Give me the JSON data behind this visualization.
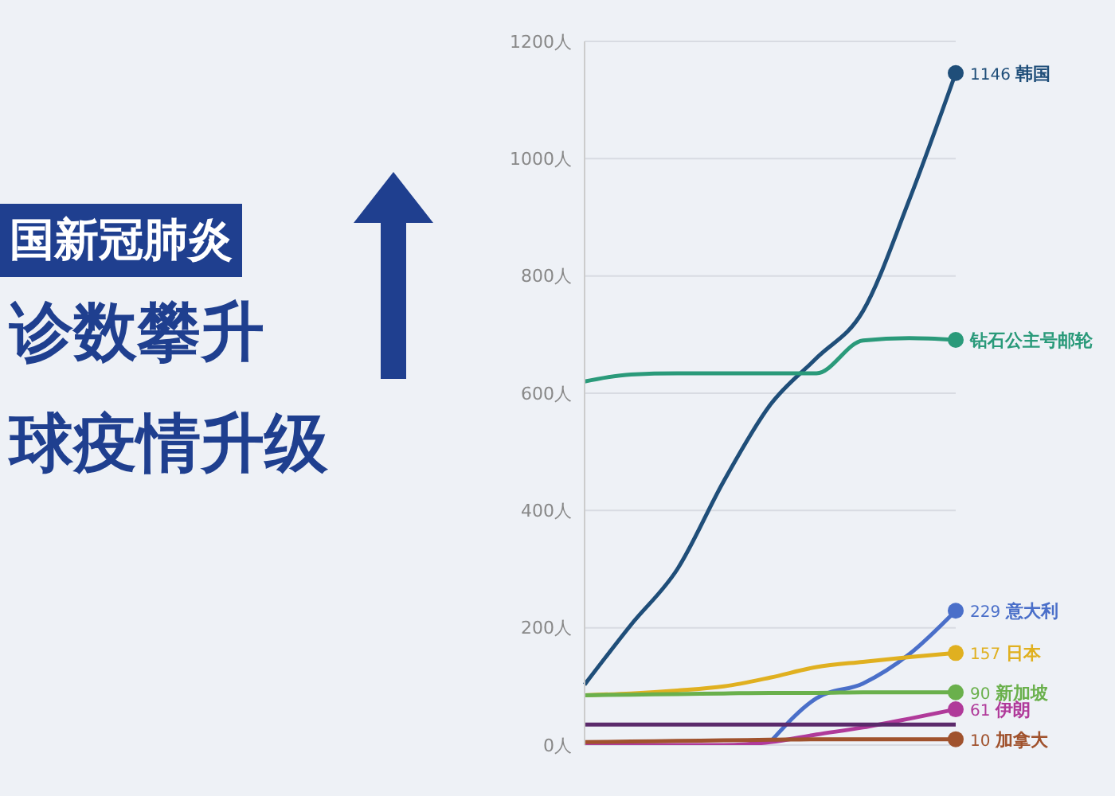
{
  "chart_data": {
    "type": "line",
    "title": "国新冠肺炎",
    "subtitle": "诊数攀升",
    "annotations": [
      "球疫情升级"
    ],
    "categories": [
      null,
      null,
      null,
      null,
      null,
      null,
      null,
      null,
      null
    ],
    "series": [
      {
        "name": "韩国",
        "color": "#1f4e79",
        "values": [
          103,
          205,
          300,
          450,
          580,
          660,
          740,
          930,
          1146
        ],
        "value_labels": [
          null,
          null,
          null,
          null,
          null,
          null,
          null,
          null,
          "1146"
        ]
      },
      {
        "name": "钻石公主号邮轮",
        "color": "#2a9a7a",
        "values": [
          620,
          632,
          634,
          634,
          634,
          634,
          690,
          694,
          691
        ],
        "value_labels": [
          null,
          null,
          null,
          null,
          null,
          null,
          null,
          null,
          null
        ]
      },
      {
        "name": "意大利",
        "color": "#4a6fc9",
        "values": [
          null,
          null,
          null,
          null,
          5,
          80,
          105,
          155,
          229
        ],
        "value_labels": [
          null,
          null,
          null,
          null,
          null,
          null,
          null,
          null,
          "229"
        ]
      },
      {
        "name": "日本",
        "color": "#e0b020",
        "values": [
          85,
          88,
          93,
          100,
          115,
          133,
          142,
          150,
          157
        ],
        "value_labels": [
          null,
          null,
          null,
          null,
          null,
          null,
          null,
          null,
          "157"
        ]
      },
      {
        "name": "新加坡",
        "color": "#6ab04c",
        "values": [
          85,
          86,
          87,
          88,
          89,
          89,
          90,
          90,
          90
        ],
        "value_labels": [
          null,
          null,
          null,
          null,
          null,
          null,
          null,
          null,
          "90"
        ]
      },
      {
        "name": "伊朗",
        "color": "#b03a9a",
        "values": [
          0,
          0,
          0,
          0,
          5,
          18,
          30,
          45,
          61
        ],
        "value_labels": [
          null,
          null,
          null,
          null,
          null,
          null,
          null,
          null,
          "61"
        ]
      },
      {
        "color": "#5b2a6b",
        "values": [
          35,
          35,
          35,
          35,
          35,
          35,
          35,
          35,
          35
        ]
      },
      {
        "name": "加拿大",
        "color": "#a0522d",
        "values": [
          5,
          6,
          7,
          8,
          9,
          10,
          10,
          10,
          10
        ],
        "value_labels": [
          null,
          null,
          null,
          null,
          null,
          null,
          null,
          null,
          "10"
        ]
      }
    ],
    "ylim": [
      0,
      1200
    ],
    "yticks": [
      {
        "value": 0,
        "label": "0人"
      },
      {
        "value": 200,
        "label": "200人"
      },
      {
        "value": 400,
        "label": "400人"
      },
      {
        "value": 600,
        "label": "600人"
      },
      {
        "value": 800,
        "label": "800人"
      },
      {
        "value": 1000,
        "label": "1000人"
      },
      {
        "value": 1200,
        "label": "1200人"
      }
    ],
    "grid": "y",
    "legend": false,
    "marker": "none",
    "line_style": "solid",
    "tick_labels": "y"
  }
}
